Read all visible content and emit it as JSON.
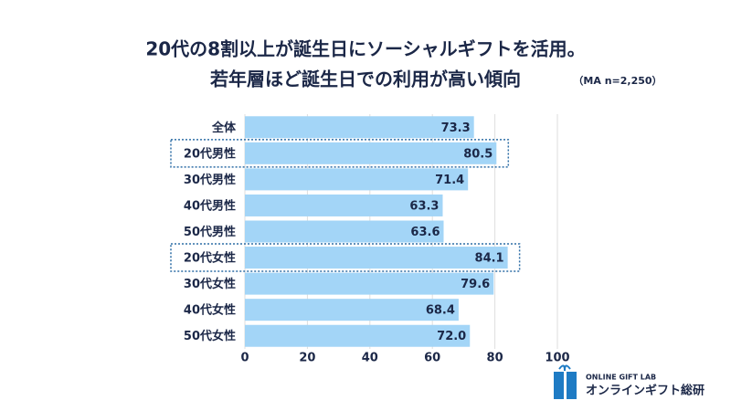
{
  "chart_data": {
    "type": "bar",
    "orientation": "horizontal",
    "title": [
      "20代の8割以上が誕生日にソーシャルギフトを活用。",
      "若年層ほど誕生日での利用が高い傾向"
    ],
    "note": "（MA n=2,250）",
    "categories": [
      "全体",
      "20代男性",
      "30代男性",
      "40代男性",
      "50代男性",
      "20代女性",
      "30代女性",
      "40代女性",
      "50代女性"
    ],
    "values": [
      73.3,
      80.5,
      71.4,
      63.3,
      63.6,
      84.1,
      79.6,
      68.4,
      72.0
    ],
    "value_labels": [
      "73.3",
      "80.5",
      "71.4",
      "63.3",
      "63.6",
      "84.1",
      "79.6",
      "68.4",
      "72.0"
    ],
    "color": "#a3d5f7",
    "highlight": [
      1,
      5
    ],
    "xlim": [
      0,
      100
    ],
    "xticks": [
      0,
      20,
      40,
      60,
      80,
      100
    ],
    "grid": true,
    "logo": {
      "top": "ONLINE GIFT LAB",
      "bottom": "オンラインギフト総研"
    }
  }
}
